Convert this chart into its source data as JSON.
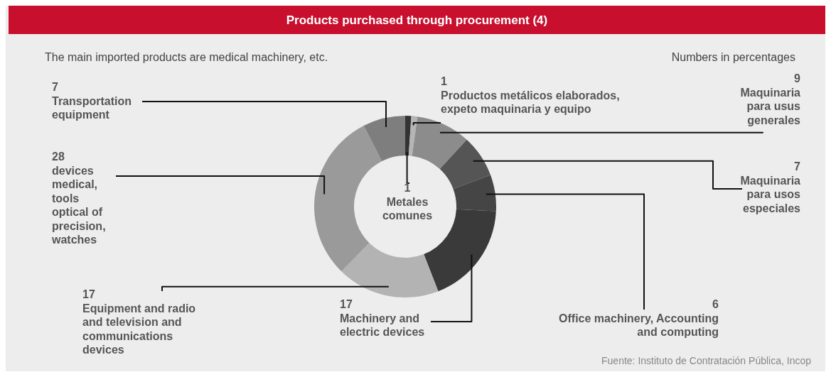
{
  "chart_data": {
    "type": "donut",
    "title": "Products purchased through procurement (4)",
    "subtitle": "The main imported products are medical machinery, etc.",
    "annotations": [
      "Numbers in percentages",
      "Fuente: Instituto de Contratación Pública, Incop"
    ],
    "categories": [
      "Metales comunes",
      "Productos metálicos elaborados, expeto maquinaria y equipo",
      "Maquinaria para usus generales",
      "Maquinaria para usos especiales",
      "Office machinery, Accounting and computing",
      "Machinery and electric devices",
      "Equipment and radio and television and communications devices",
      "devices medical, tools optical of precision, watches",
      "Transportation equipment"
    ],
    "values": [
      1,
      1,
      9,
      7,
      6,
      17,
      17,
      28,
      7
    ],
    "colors": [
      "#333333",
      "#b5b5b5",
      "#8c8c8c",
      "#555555",
      "#454545",
      "#3a3a3a",
      "#b3b3b3",
      "#9a9a9a",
      "#7e7e7e"
    ],
    "data_labels": true,
    "legend": false
  }
}
